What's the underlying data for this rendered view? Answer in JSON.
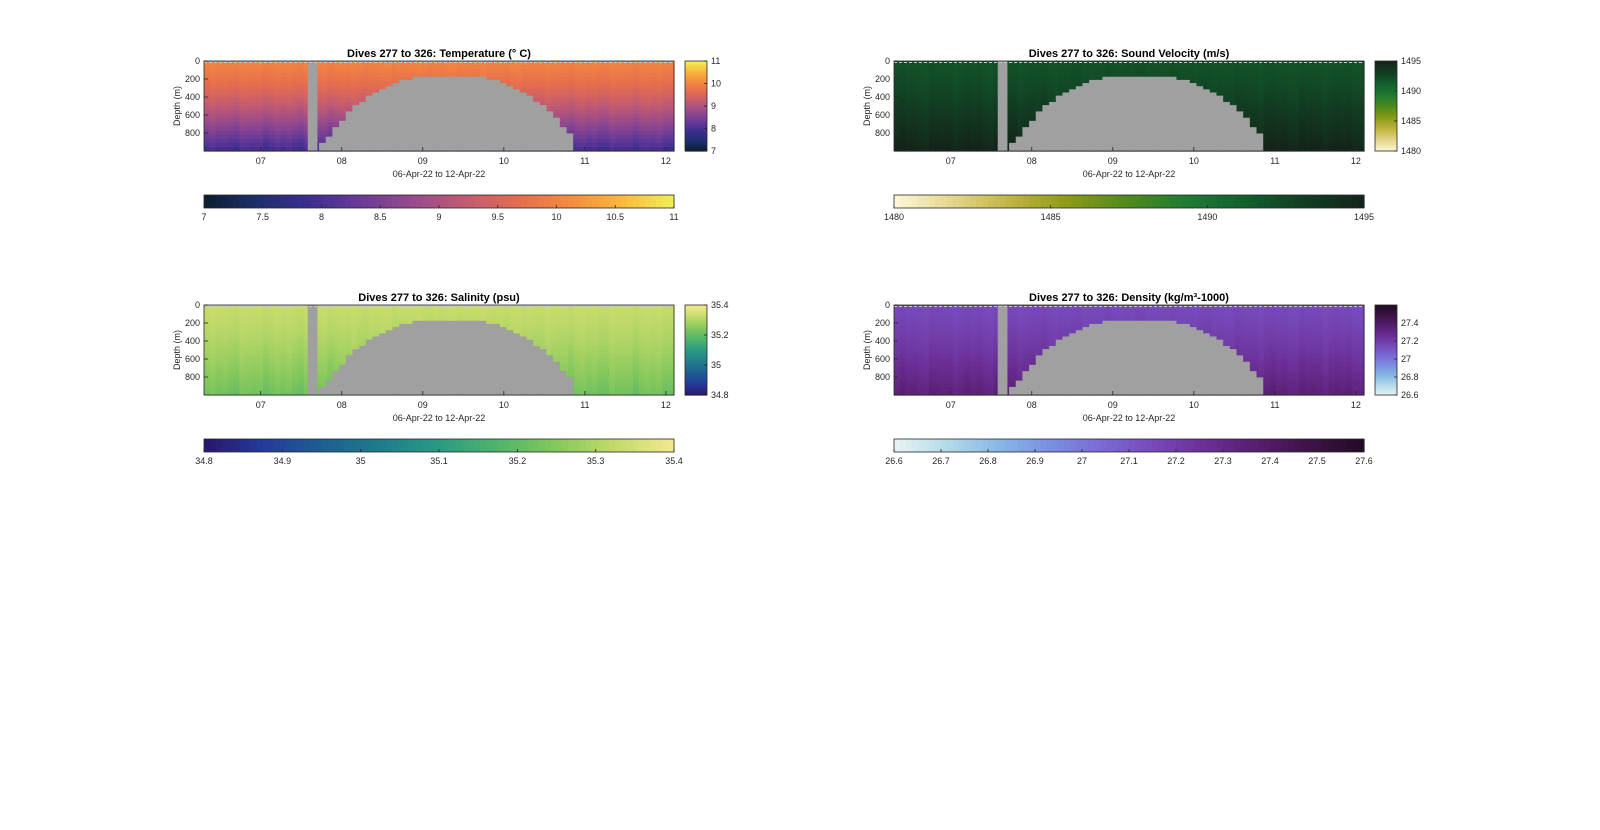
{
  "colors": {
    "background": "#ffffff",
    "gap_gray": "#a0a0a0",
    "axis": "#262626",
    "grid_dash": "#c8c8c8"
  },
  "chart_data": [
    {
      "id": "temperature",
      "type": "heatmap",
      "title": "Dives 277 to 326: Temperature (° C)",
      "xlabel": "06-Apr-22 to 12-Apr-22",
      "ylabel": "Depth (m)",
      "x_ticks": [
        "07",
        "08",
        "09",
        "10",
        "11",
        "12"
      ],
      "y_ticks": [
        "0",
        "200",
        "400",
        "600",
        "800"
      ],
      "xlim": [
        6.3,
        12.1
      ],
      "ylim": [
        0,
        1000
      ],
      "colormap": [
        "#0b1d2e",
        "#1d2f6b",
        "#3c2d90",
        "#6a3b98",
        "#974a8c",
        "#c25a72",
        "#e46c4f",
        "#f58b3f",
        "#f9b83c",
        "#f0ef58"
      ],
      "side_colorbar": {
        "ticks": [
          "7",
          "8",
          "9",
          "10",
          "11"
        ],
        "range": [
          7,
          11
        ]
      },
      "bottom_colorbar": {
        "ticks": [
          "7",
          "7.5",
          "8",
          "8.5",
          "9",
          "9.5",
          "10",
          "10.5",
          "11"
        ],
        "range": [
          7,
          11
        ]
      },
      "surface_value": 10.0,
      "deep_value": 7.9
    },
    {
      "id": "sound_velocity",
      "type": "heatmap",
      "title": "Dives 277 to 326: Sound Velocity (m/s)",
      "xlabel": "06-Apr-22 to 12-Apr-22",
      "ylabel": "Depth (m)",
      "x_ticks": [
        "07",
        "08",
        "09",
        "10",
        "11",
        "12"
      ],
      "y_ticks": [
        "0",
        "200",
        "400",
        "600",
        "800"
      ],
      "xlim": [
        6.3,
        12.1
      ],
      "ylim": [
        0,
        1000
      ],
      "colormap": [
        "#fdf7da",
        "#e4d68a",
        "#bfb341",
        "#8a9a13",
        "#4e8a1d",
        "#1f7a33",
        "#125f2e",
        "#123d22",
        "#13241a"
      ],
      "side_colorbar": {
        "ticks": [
          "1495",
          "1490",
          "1485",
          "1480"
        ],
        "range": [
          1480,
          1495
        ]
      },
      "bottom_colorbar": {
        "ticks": [
          "1480",
          "1485",
          "1490",
          "1495"
        ],
        "range": [
          1480,
          1495
        ]
      },
      "surface_value": 1492.0,
      "deep_value": 1495.0
    },
    {
      "id": "salinity",
      "type": "heatmap",
      "title": "Dives 277 to 326: Salinity (psu)",
      "xlabel": "06-Apr-22 to 12-Apr-22",
      "ylabel": "Depth (m)",
      "x_ticks": [
        "07",
        "08",
        "09",
        "10",
        "11",
        "12"
      ],
      "y_ticks": [
        "0",
        "200",
        "400",
        "600",
        "800"
      ],
      "xlim": [
        6.3,
        12.1
      ],
      "ylim": [
        0,
        1000
      ],
      "colormap": [
        "#29166b",
        "#253a9b",
        "#1d5e91",
        "#1f7d8c",
        "#2a9a84",
        "#4fb46b",
        "#86c85c",
        "#c3da6a",
        "#f3ea8f"
      ],
      "side_colorbar": {
        "ticks": [
          "35.4",
          "35.2",
          "35",
          "34.8"
        ],
        "range": [
          34.8,
          35.4
        ]
      },
      "bottom_colorbar": {
        "ticks": [
          "34.8",
          "34.9",
          "35",
          "35.1",
          "35.2",
          "35.3",
          "35.4"
        ],
        "range": [
          34.8,
          35.4
        ]
      },
      "surface_value": 35.33,
      "deep_value": 35.22
    },
    {
      "id": "density",
      "type": "heatmap",
      "title": "Dives 277 to 326: Density (kg/m³-1000)",
      "xlabel": "06-Apr-22 to 12-Apr-22",
      "ylabel": "Depth (m)",
      "x_ticks": [
        "07",
        "08",
        "09",
        "10",
        "11",
        "12"
      ],
      "y_ticks": [
        "0",
        "200",
        "400",
        "600",
        "800"
      ],
      "xlim": [
        6.3,
        12.1
      ],
      "ylim": [
        0,
        1000
      ],
      "colormap": [
        "#e9f4f4",
        "#b5dbe8",
        "#87b8e6",
        "#7b8ee2",
        "#7b6ad4",
        "#7648b8",
        "#6a2e94",
        "#561d6d",
        "#3c1345",
        "#230b23"
      ],
      "side_colorbar": {
        "ticks": [
          "27.4",
          "27.2",
          "27",
          "26.8",
          "26.6"
        ],
        "range": [
          26.6,
          27.6
        ]
      },
      "bottom_colorbar": {
        "ticks": [
          "26.6",
          "26.7",
          "26.8",
          "26.9",
          "27",
          "27.1",
          "27.2",
          "27.3",
          "27.4",
          "27.5",
          "27.6"
        ],
        "range": [
          26.6,
          27.6
        ]
      },
      "surface_value": 27.15,
      "deep_value": 27.35
    }
  ]
}
